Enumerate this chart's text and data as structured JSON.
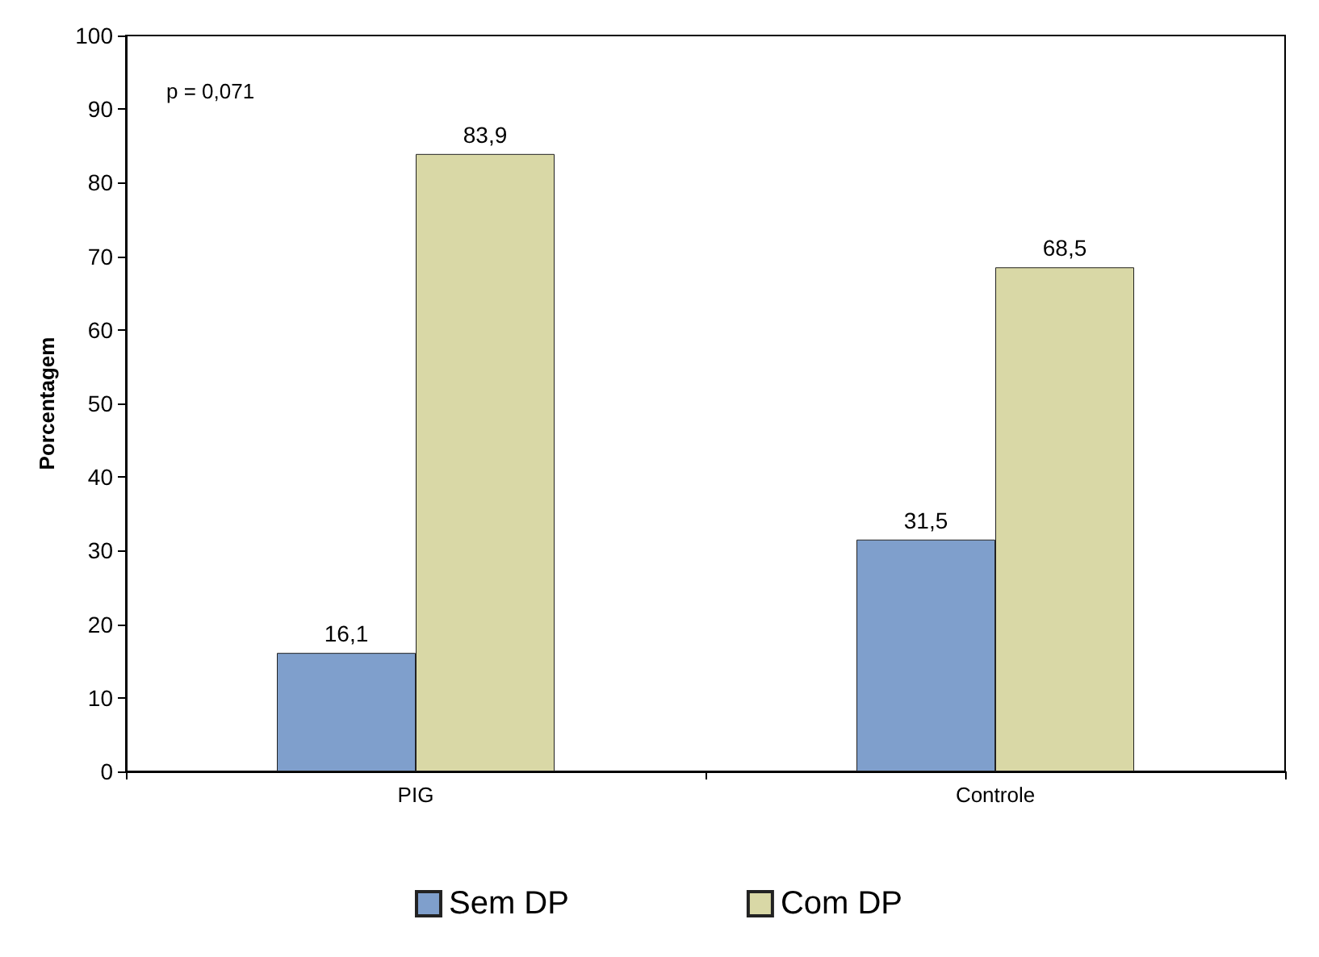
{
  "chart_data": {
    "type": "bar",
    "ylabel": "Porcentagem",
    "categories": [
      "PIG",
      "Controle"
    ],
    "series": [
      {
        "name": "Sem DP",
        "color": "#7f9fcc",
        "values": [
          16.1,
          31.5
        ],
        "value_labels": [
          "16,1",
          "31,5"
        ]
      },
      {
        "name": "Com DP",
        "color": "#d9d8a6",
        "values": [
          83.9,
          68.5
        ],
        "value_labels": [
          "83,9",
          "68,5"
        ]
      }
    ],
    "ylim": [
      0,
      100
    ],
    "yticks": [
      0,
      10,
      20,
      30,
      40,
      50,
      60,
      70,
      80,
      90,
      100
    ],
    "grid": false,
    "legend": "bottom",
    "annotations": [
      "p = 0,071"
    ]
  }
}
